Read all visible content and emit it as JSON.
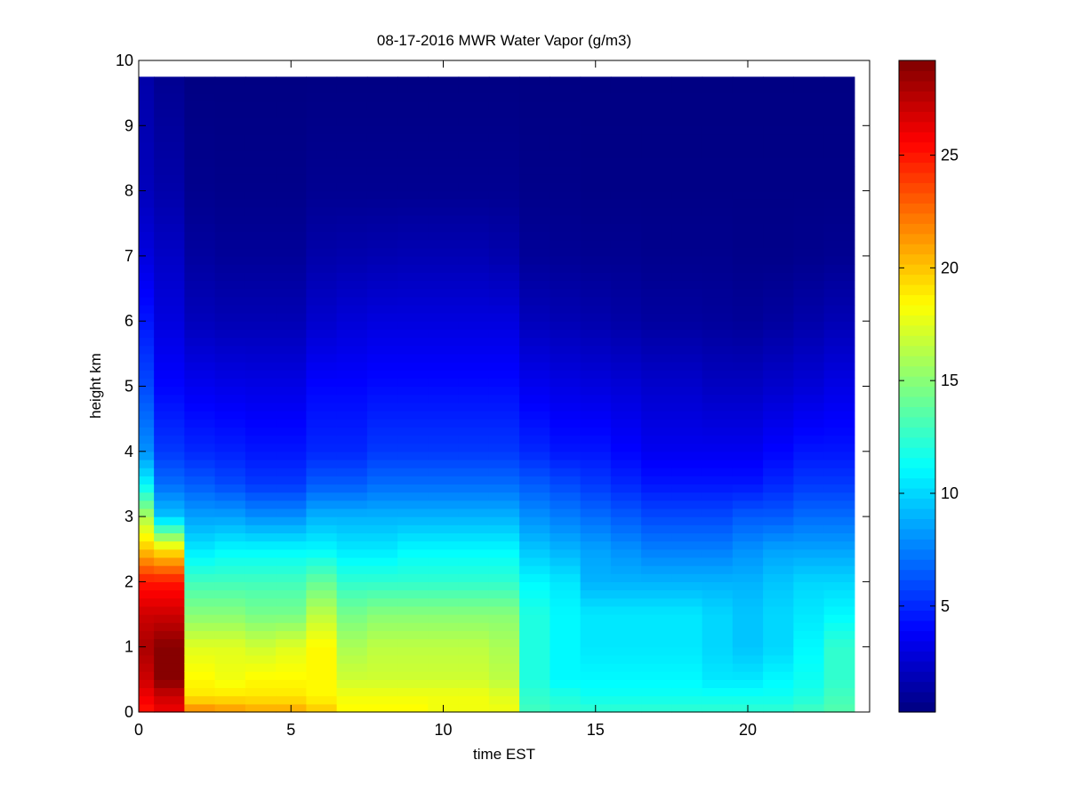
{
  "figure": {
    "background": "#ffffff",
    "axes_background": "#ffffff"
  },
  "chart_data": {
    "type": "heatmap",
    "title": "08-17-2016 MWR Water Vapor (g/m3)",
    "xlabel": "time EST",
    "ylabel": "height km",
    "xlim": [
      0,
      24
    ],
    "ylim": [
      0,
      10
    ],
    "xticks": [
      0,
      5,
      10,
      15,
      20
    ],
    "yticks": [
      0,
      1,
      2,
      3,
      4,
      5,
      6,
      7,
      8,
      9,
      10
    ],
    "colormap": "jet",
    "colorbar": {
      "clim": [
        0.3,
        29.2
      ],
      "ticks": [
        5,
        10,
        15,
        20,
        25
      ],
      "position": "right"
    },
    "grid": false,
    "x_bin_edges": [
      0,
      0.5,
      1.5,
      2.5,
      3.5,
      4.5,
      5.5,
      6.5,
      7.5,
      8.5,
      9.5,
      10.5,
      11.5,
      12.5,
      13.5,
      14.5,
      15.5,
      16.5,
      17.5,
      18.5,
      19.5,
      20.5,
      21.5,
      22.5,
      23.5
    ],
    "profiles_height_km": [
      0,
      0.25,
      0.5,
      1,
      1.5,
      2,
      2.5,
      3,
      3.5,
      4,
      5,
      6,
      7,
      8,
      9.75
    ],
    "profiles_time_EST": [
      0,
      1,
      2,
      3,
      4,
      5,
      6,
      7,
      8,
      9,
      10,
      11,
      12,
      13,
      14,
      15,
      16,
      17,
      18,
      19,
      20,
      21,
      22,
      23
    ],
    "profiles_water_vapor": [
      [
        25,
        26,
        27,
        28,
        27,
        25,
        20,
        16,
        11,
        8,
        6,
        4.5,
        3,
        2,
        1.5
      ],
      [
        26,
        27,
        29,
        29,
        27,
        25,
        19,
        9.5,
        7,
        5.5,
        4,
        3,
        2.3,
        1.5,
        0.8
      ],
      [
        22,
        19,
        18.5,
        17.5,
        15,
        13,
        10.5,
        8.5,
        6.5,
        5,
        3.5,
        2,
        1.2,
        0.7,
        0.4
      ],
      [
        21.5,
        19,
        18,
        17.5,
        15,
        13,
        11,
        8.5,
        6,
        4.8,
        3.3,
        1.8,
        1,
        0.6,
        0.4
      ],
      [
        21,
        19,
        18.5,
        17,
        14.5,
        13,
        11,
        8,
        5.5,
        4.5,
        3.2,
        1.8,
        1,
        0.6,
        0.4
      ],
      [
        21,
        19,
        18.5,
        17.5,
        14.5,
        13,
        11,
        8,
        5.5,
        4.5,
        3.2,
        1.8,
        1,
        0.6,
        0.4
      ],
      [
        20,
        18.5,
        18.5,
        18.5,
        16.5,
        14,
        11,
        9,
        6.5,
        5,
        4,
        2.5,
        1.5,
        0.8,
        0.4
      ],
      [
        18.5,
        18,
        17,
        16,
        14.5,
        12.5,
        10.5,
        9,
        6.5,
        5,
        4,
        2.8,
        1.6,
        0.8,
        0.4
      ],
      [
        18.5,
        18,
        17,
        16.5,
        15,
        12.5,
        10.5,
        9,
        7,
        5.5,
        4.2,
        3,
        1.7,
        0.8,
        0.4
      ],
      [
        18.5,
        18,
        17,
        16.5,
        15,
        12.5,
        11,
        9,
        7,
        5.5,
        4.2,
        3,
        1.8,
        0.8,
        0.4
      ],
      [
        18,
        18,
        17,
        16.5,
        15,
        12.5,
        11,
        9,
        7,
        5.5,
        4.2,
        3,
        1.8,
        0.8,
        0.4
      ],
      [
        18,
        18,
        17,
        16.5,
        15,
        12.5,
        11,
        9,
        7,
        5.5,
        4.2,
        3,
        1.8,
        0.8,
        0.4
      ],
      [
        18,
        17.5,
        16.5,
        16,
        15,
        12.5,
        11,
        9,
        7,
        5.5,
        4.2,
        3,
        1.6,
        0.8,
        0.4
      ],
      [
        13,
        12.5,
        12,
        12,
        12,
        11,
        9.5,
        8,
        6.5,
        5,
        3.5,
        2,
        1,
        0.6,
        0.4
      ],
      [
        12.5,
        12,
        11,
        11,
        11,
        10.5,
        9,
        7.5,
        6,
        4.5,
        3.2,
        1.8,
        0.9,
        0.6,
        0.4
      ],
      [
        12.5,
        11.5,
        11,
        10.5,
        10.5,
        9,
        8.5,
        7,
        5.5,
        4.5,
        3,
        1.6,
        0.8,
        0.5,
        0.4
      ],
      [
        12.5,
        11.5,
        11,
        10.5,
        10.5,
        9,
        8,
        6.5,
        5,
        4,
        2.8,
        1.4,
        0.8,
        0.5,
        0.4
      ],
      [
        12.5,
        11.5,
        11,
        10.5,
        10.5,
        9,
        7.5,
        6,
        4.5,
        3.5,
        2.5,
        1.2,
        0.7,
        0.5,
        0.4
      ],
      [
        12.5,
        11.5,
        11,
        10.5,
        10.5,
        9,
        7.5,
        6,
        4.5,
        3.5,
        2.5,
        1.2,
        0.7,
        0.5,
        0.4
      ],
      [
        12.5,
        11.5,
        10.5,
        10,
        10,
        9,
        7.5,
        6,
        4.5,
        3.5,
        2.2,
        1.1,
        0.7,
        0.5,
        0.4
      ],
      [
        12.5,
        11.5,
        10.5,
        9.5,
        9.5,
        9,
        8,
        6.5,
        4.5,
        3.5,
        2.2,
        1,
        0.6,
        0.5,
        0.4
      ],
      [
        12.5,
        11.5,
        11,
        10,
        10,
        9.5,
        8.5,
        6.5,
        5,
        4,
        2.5,
        1.2,
        0.6,
        0.5,
        0.4
      ],
      [
        13,
        12,
        11.5,
        11,
        10.5,
        10,
        8.5,
        7,
        5.5,
        4.5,
        2.8,
        1.5,
        0.7,
        0.5,
        0.4
      ],
      [
        13.5,
        13,
        12.5,
        12.5,
        11,
        10,
        8.5,
        7,
        5.5,
        4.5,
        3.2,
        1.8,
        0.8,
        0.5,
        0.4
      ]
    ]
  }
}
